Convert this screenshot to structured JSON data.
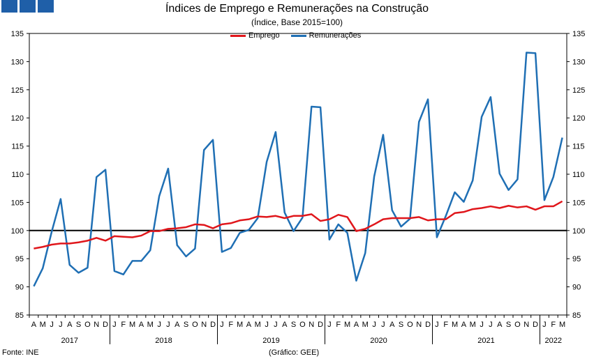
{
  "chart_data": {
    "type": "line",
    "title": "Índices de Emprego e Remunerações na Construção",
    "subtitle": "(Índice, Base 2015=100)",
    "source": "Fonte: INE",
    "credit": "(Gráfico: GEE)",
    "ylim": [
      85,
      135
    ],
    "yticks": [
      85,
      90,
      95,
      100,
      105,
      110,
      115,
      120,
      125,
      130,
      135
    ],
    "reference_line": 100,
    "legend_position": "top-center",
    "month_labels": [
      "A",
      "M",
      "J",
      "J",
      "A",
      "S",
      "O",
      "N",
      "D",
      "J",
      "F",
      "M",
      "A",
      "M",
      "J",
      "J",
      "A",
      "S",
      "O",
      "N",
      "D",
      "J",
      "F",
      "M",
      "A",
      "M",
      "J",
      "J",
      "A",
      "S",
      "O",
      "N",
      "D",
      "J",
      "F",
      "M",
      "A",
      "M",
      "J",
      "J",
      "A",
      "S",
      "O",
      "N",
      "D",
      "J",
      "F",
      "M",
      "A",
      "M",
      "J",
      "J",
      "A",
      "S",
      "O",
      "N",
      "D",
      "J",
      "F",
      "M"
    ],
    "years": [
      {
        "label": "2017",
        "start": 0,
        "end": 8
      },
      {
        "label": "2018",
        "start": 9,
        "end": 20
      },
      {
        "label": "2019",
        "start": 21,
        "end": 32
      },
      {
        "label": "2020",
        "start": 33,
        "end": 44
      },
      {
        "label": "2021",
        "start": 45,
        "end": 56
      },
      {
        "label": "2022",
        "start": 57,
        "end": 59
      }
    ],
    "series": [
      {
        "name": "Emprego",
        "color": "#e0161b",
        "values": [
          96.8,
          97.1,
          97.5,
          97.7,
          97.7,
          97.9,
          98.2,
          98.7,
          98.2,
          99.0,
          98.9,
          98.8,
          99.1,
          99.9,
          99.9,
          100.3,
          100.4,
          100.6,
          101.1,
          101.0,
          100.4,
          101.1,
          101.3,
          101.8,
          102.0,
          102.5,
          102.4,
          102.6,
          102.2,
          102.6,
          102.6,
          102.9,
          101.7,
          102.0,
          102.8,
          102.4,
          99.9,
          100.3,
          101.1,
          102.0,
          102.2,
          102.2,
          102.2,
          102.4,
          101.8,
          102.0,
          102.0,
          103.1,
          103.3,
          103.8,
          104.0,
          104.3,
          104.0,
          104.4,
          104.1,
          104.3,
          103.7,
          104.3,
          104.3,
          105.2
        ]
      },
      {
        "name": "Remunerações",
        "color": "#1f6fb4",
        "values": [
          90.1,
          93.3,
          99.8,
          105.6,
          93.9,
          92.5,
          93.4,
          109.5,
          110.8,
          92.8,
          92.2,
          94.6,
          94.6,
          96.5,
          106.1,
          111.0,
          97.4,
          95.4,
          96.8,
          114.3,
          116.1,
          96.2,
          96.9,
          99.6,
          100.1,
          102.2,
          112.2,
          117.5,
          103.2,
          99.9,
          102.3,
          122.0,
          121.9,
          98.4,
          101.1,
          99.6,
          91.1,
          96.0,
          109.6,
          117.0,
          103.6,
          100.7,
          102.1,
          119.3,
          123.3,
          98.8,
          102.6,
          106.8,
          105.1,
          108.9,
          120.2,
          123.7,
          110.1,
          107.2,
          109.1,
          131.6,
          131.5,
          105.4,
          109.5,
          116.5
        ]
      }
    ]
  }
}
